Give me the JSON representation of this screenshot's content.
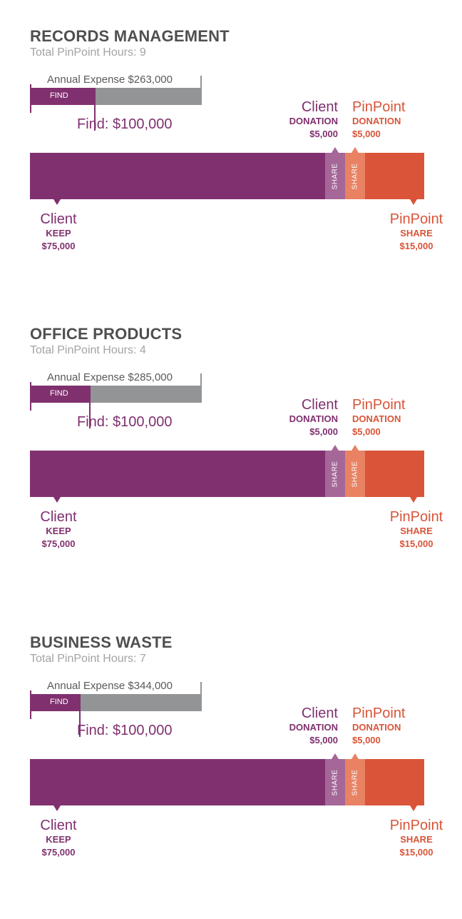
{
  "chart_data": [
    {
      "type": "bar",
      "title": "RECORDS MANAGEMENT",
      "subtitle": "Total PinPoint Hours: 9",
      "annual_expense_label": "Annual Expense $263,000",
      "annual_expense": 263000,
      "find_tag": "FIND",
      "find_label": "Find: $100,000",
      "find": 100000,
      "segments": [
        {
          "party": "Client",
          "type": "KEEP",
          "amount": "$75,000",
          "value": 75000,
          "color": "#80306f"
        },
        {
          "party": "Client",
          "type": "DONATION",
          "amount": "$5,000",
          "value": 5000,
          "bar_text": "SHARE",
          "color": "#a56698"
        },
        {
          "party": "PinPoint",
          "type": "DONATION",
          "amount": "$5,000",
          "value": 5000,
          "bar_text": "SHARE",
          "color": "#e88263"
        },
        {
          "party": "PinPoint",
          "type": "SHARE",
          "amount": "$15,000",
          "value": 15000,
          "color": "#d95438"
        }
      ]
    },
    {
      "type": "bar",
      "title": "OFFICE PRODUCTS",
      "subtitle": "Total PinPoint Hours: 4",
      "annual_expense_label": "Annual Expense $285,000",
      "annual_expense": 285000,
      "find_tag": "FIND",
      "find_label": "Find: $100,000",
      "find": 100000,
      "segments": [
        {
          "party": "Client",
          "type": "KEEP",
          "amount": "$75,000",
          "value": 75000,
          "color": "#80306f"
        },
        {
          "party": "Client",
          "type": "DONATION",
          "amount": "$5,000",
          "value": 5000,
          "bar_text": "SHARE",
          "color": "#a56698"
        },
        {
          "party": "PinPoint",
          "type": "DONATION",
          "amount": "$5,000",
          "value": 5000,
          "bar_text": "SHARE",
          "color": "#e88263"
        },
        {
          "party": "PinPoint",
          "type": "SHARE",
          "amount": "$15,000",
          "value": 15000,
          "color": "#d95438"
        }
      ]
    },
    {
      "type": "bar",
      "title": "BUSINESS WASTE",
      "subtitle": "Total PinPoint Hours: 7",
      "annual_expense_label": "Annual Expense $344,000",
      "annual_expense": 344000,
      "find_tag": "FIND",
      "find_label": "Find: $100,000",
      "find": 100000,
      "segments": [
        {
          "party": "Client",
          "type": "KEEP",
          "amount": "$75,000",
          "value": 75000,
          "color": "#80306f"
        },
        {
          "party": "Client",
          "type": "DONATION",
          "amount": "$5,000",
          "value": 5000,
          "bar_text": "SHARE",
          "color": "#a56698"
        },
        {
          "party": "PinPoint",
          "type": "DONATION",
          "amount": "$5,000",
          "value": 5000,
          "bar_text": "SHARE",
          "color": "#e88263"
        },
        {
          "party": "PinPoint",
          "type": "SHARE",
          "amount": "$15,000",
          "value": 15000,
          "color": "#d95438"
        }
      ]
    }
  ],
  "colors": {
    "title": "#4f4f4f",
    "subtitle": "#a3a3a3",
    "expense_bar": "#929496",
    "purple": "#80306f",
    "orange": "#d95438"
  }
}
